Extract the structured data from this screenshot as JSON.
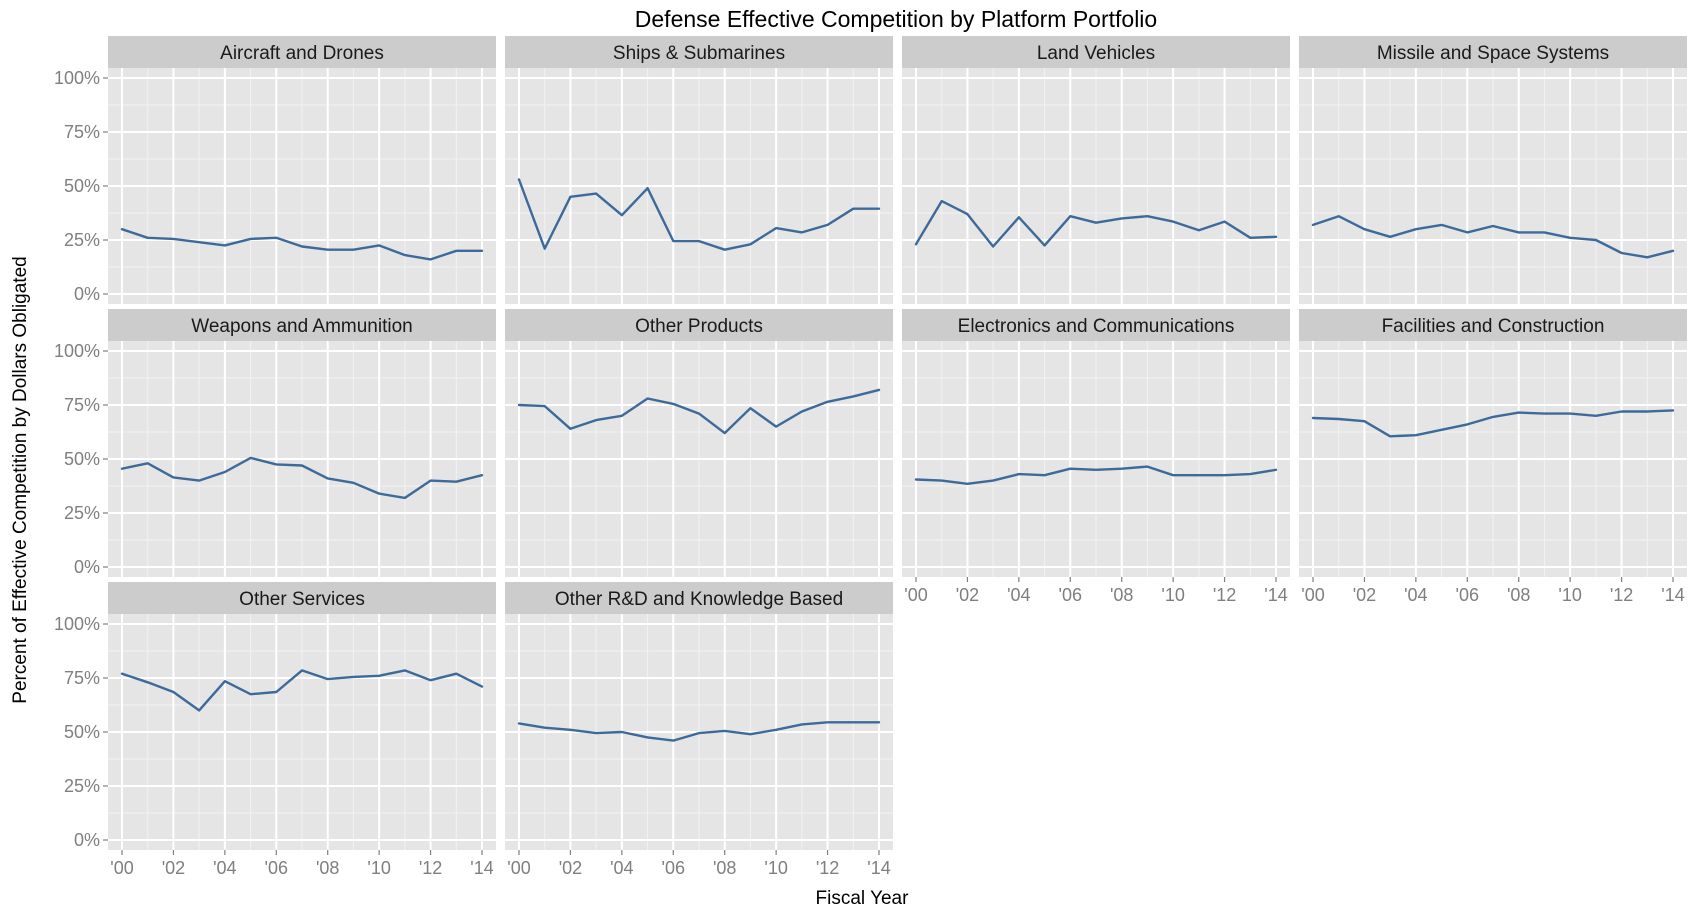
{
  "chart_data": {
    "type": "line",
    "title": "Defense Effective Competition by Platform Portfolio",
    "xlabel": "Fiscal Year",
    "ylabel": "Percent of Effective Competition by Dollars Obligated",
    "x": [
      2000,
      2001,
      2002,
      2003,
      2004,
      2005,
      2006,
      2007,
      2008,
      2009,
      2010,
      2011,
      2012,
      2013,
      2014
    ],
    "x_ticks": [
      "'00",
      "'02",
      "'04",
      "'06",
      "'08",
      "'10",
      "'12",
      "'14"
    ],
    "y_ticks": [
      "0%",
      "25%",
      "50%",
      "75%",
      "100%"
    ],
    "ylim": [
      0,
      1
    ],
    "xlim": [
      2000,
      2014
    ],
    "grid": true,
    "layout": "facet_wrap 4 columns",
    "line_color": "#3d6a99",
    "panel_bg": "#e5e5e5",
    "strip_bg": "#cccccc",
    "series": [
      {
        "name": "Aircraft and Drones",
        "values": [
          0.3,
          0.26,
          0.255,
          0.24,
          0.225,
          0.255,
          0.26,
          0.22,
          0.205,
          0.205,
          0.225,
          0.18,
          0.16,
          0.2,
          0.2
        ]
      },
      {
        "name": "Ships & Submarines",
        "values": [
          0.53,
          0.21,
          0.45,
          0.465,
          0.365,
          0.49,
          0.245,
          0.245,
          0.205,
          0.23,
          0.305,
          0.285,
          0.32,
          0.395,
          0.395
        ]
      },
      {
        "name": "Land Vehicles",
        "values": [
          0.23,
          0.43,
          0.37,
          0.22,
          0.355,
          0.225,
          0.36,
          0.33,
          0.35,
          0.36,
          0.335,
          0.295,
          0.335,
          0.26,
          0.265
        ]
      },
      {
        "name": "Missile and Space Systems",
        "values": [
          0.32,
          0.36,
          0.3,
          0.265,
          0.3,
          0.32,
          0.285,
          0.315,
          0.285,
          0.285,
          0.26,
          0.25,
          0.19,
          0.17,
          0.2
        ]
      },
      {
        "name": "Weapons and Ammunition",
        "values": [
          0.455,
          0.48,
          0.415,
          0.4,
          0.44,
          0.505,
          0.475,
          0.47,
          0.41,
          0.39,
          0.34,
          0.32,
          0.4,
          0.395,
          0.425
        ]
      },
      {
        "name": "Other Products",
        "values": [
          0.75,
          0.745,
          0.64,
          0.68,
          0.7,
          0.78,
          0.755,
          0.71,
          0.62,
          0.735,
          0.65,
          0.72,
          0.765,
          0.79,
          0.82
        ]
      },
      {
        "name": "Electronics and Communications",
        "values": [
          0.405,
          0.4,
          0.385,
          0.4,
          0.43,
          0.425,
          0.455,
          0.45,
          0.455,
          0.465,
          0.425,
          0.425,
          0.425,
          0.43,
          0.45
        ]
      },
      {
        "name": "Facilities and Construction",
        "values": [
          0.69,
          0.685,
          0.675,
          0.605,
          0.61,
          0.635,
          0.66,
          0.695,
          0.715,
          0.71,
          0.71,
          0.7,
          0.72,
          0.72,
          0.725
        ]
      },
      {
        "name": "Other Services",
        "values": [
          0.77,
          0.73,
          0.685,
          0.6,
          0.735,
          0.675,
          0.685,
          0.785,
          0.745,
          0.755,
          0.76,
          0.785,
          0.74,
          0.77,
          0.71
        ]
      },
      {
        "name": "Other R&D and Knowledge Based",
        "values": [
          0.54,
          0.52,
          0.51,
          0.495,
          0.5,
          0.475,
          0.46,
          0.495,
          0.505,
          0.49,
          0.51,
          0.535,
          0.545,
          0.545,
          0.545
        ]
      }
    ]
  }
}
